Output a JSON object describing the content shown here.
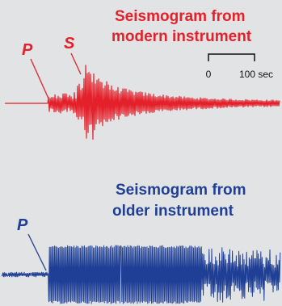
{
  "colors": {
    "background": "#e2e3e4",
    "modern": "#e4202a",
    "older": "#1f3f96",
    "scale": "#111111"
  },
  "modern": {
    "title_line1": "Seismogram from",
    "title_line2": "modern instrument",
    "label_p": "P",
    "label_s": "S"
  },
  "older": {
    "title_line1": "Seismogram from",
    "title_line2": "older instrument",
    "label_p": "P"
  },
  "scale_bar": {
    "label_start": "0",
    "label_end": "100 sec"
  }
}
